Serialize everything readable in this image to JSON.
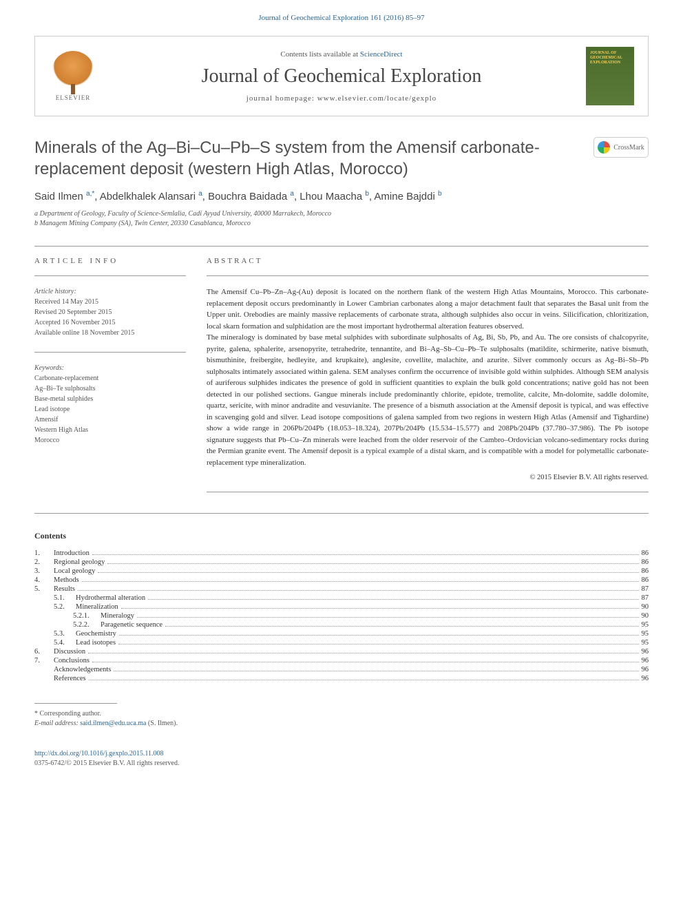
{
  "top_link": "Journal of Geochemical Exploration 161 (2016) 85–97",
  "header": {
    "contents_text": "Contents lists available at ",
    "contents_link": "ScienceDirect",
    "journal_name": "Journal of Geochemical Exploration",
    "homepage_label": "journal homepage: ",
    "homepage_url": "www.elsevier.com/locate/gexplo",
    "publisher_name": "ELSEVIER",
    "cover_text": "JOURNAL OF GEOCHEMICAL EXPLORATION"
  },
  "crossmark": "CrossMark",
  "title": "Minerals of the Ag–Bi–Cu–Pb–S system from the Amensif carbonate-replacement deposit (western High Atlas, Morocco)",
  "authors_html": "Said Ilmen <sup>a,*</sup>, Abdelkhalek Alansari <sup>a</sup>, Bouchra Baidada <sup>a</sup>, Lhou Maacha <sup>b</sup>, Amine Bajddi <sup>b</sup>",
  "affiliations": [
    "a Department of Geology, Faculty of Science-Semlalia, Cadi Ayyad University, 40000 Marrakech, Morocco",
    "b Managem Mining Company (SA), Twin Center, 20330 Casablanca, Morocco"
  ],
  "article_info_heading": "ARTICLE INFO",
  "abstract_heading": "ABSTRACT",
  "history": {
    "label": "Article history:",
    "received": "Received 14 May 2015",
    "revised": "Revised 20 September 2015",
    "accepted": "Accepted 16 November 2015",
    "online": "Available online 18 November 2015"
  },
  "keywords": {
    "label": "Keywords:",
    "items": [
      "Carbonate-replacement",
      "Ag–Bi–Te sulphosalts",
      "Base-metal sulphides",
      "Lead isotope",
      "Amensif",
      "Western High Atlas",
      "Morocco"
    ]
  },
  "abstract": {
    "p1": "The Amensif Cu–Pb–Zn–Ag-(Au) deposit is located on the northern flank of the western High Atlas Mountains, Morocco. This carbonate-replacement deposit occurs predominantly in Lower Cambrian carbonates along a major detachment fault that separates the Basal unit from the Upper unit. Orebodies are mainly massive replacements of carbonate strata, although sulphides also occur in veins. Silicification, chloritization, local skarn formation and sulphidation are the most important hydrothermal alteration features observed.",
    "p2": "The mineralogy is dominated by base metal sulphides with subordinate sulphosalts of Ag, Bi, Sb, Pb, and Au. The ore consists of chalcopyrite, pyrite, galena, sphalerite, arsenopyrite, tetrahedrite, tennantite, and Bi–Ag–Sb–Cu–Pb–Te sulphosalts (matildite, schirmerite, native bismuth, bismuthinite, freibergite, hedleyite, and krupkaite), anglesite, covellite, malachite, and azurite. Silver commonly occurs as Ag–Bi–Sb–Pb sulphosalts intimately associated within galena. SEM analyses confirm the occurrence of invisible gold within sulphides. Although SEM analysis of auriferous sulphides indicates the presence of gold in sufficient quantities to explain the bulk gold concentrations; native gold has not been detected in our polished sections. Gangue minerals include predominantly chlorite, epidote, tremolite, calcite, Mn-dolomite, saddle dolomite, quartz, sericite, with minor andradite and vesuvianite. The presence of a bismuth association at the Amensif deposit is typical, and was effective in scavenging gold and silver. Lead isotope compositions of galena sampled from two regions in western High Atlas (Amensif and Tighardine) show a wide range in 206Pb/204Pb (18.053–18.324), 207Pb/204Pb (15.534–15.577) and 208Pb/204Pb (37.780–37.986). The Pb isotope signature suggests that Pb–Cu–Zn minerals were leached from the older reservoir of the Cambro–Ordovician volcano-sedimentary rocks during the Permian granite event. The Amensif deposit is a typical example of a distal skarn, and is compatible with a model for polymetallic carbonate-replacement type mineralization."
  },
  "copyright": "© 2015 Elsevier B.V. All rights reserved.",
  "contents_heading": "Contents",
  "toc": [
    {
      "num": "1.",
      "label": "Introduction",
      "page": "86",
      "indent": 0
    },
    {
      "num": "2.",
      "label": "Regional geology",
      "page": "86",
      "indent": 0
    },
    {
      "num": "3.",
      "label": "Local geology",
      "page": "86",
      "indent": 0
    },
    {
      "num": "4.",
      "label": "Methods",
      "page": "86",
      "indent": 0
    },
    {
      "num": "5.",
      "label": "Results",
      "page": "87",
      "indent": 0
    },
    {
      "num": "5.1.",
      "label": "Hydrothermal alteration",
      "page": "87",
      "indent": 1
    },
    {
      "num": "5.2.",
      "label": "Mineralization",
      "page": "90",
      "indent": 1
    },
    {
      "num": "5.2.1.",
      "label": "Mineralogy",
      "page": "90",
      "indent": 2
    },
    {
      "num": "5.2.2.",
      "label": "Paragenetic sequence",
      "page": "95",
      "indent": 2
    },
    {
      "num": "5.3.",
      "label": "Geochemistry",
      "page": "95",
      "indent": 1
    },
    {
      "num": "5.4.",
      "label": "Lead isotopes",
      "page": "95",
      "indent": 1
    },
    {
      "num": "6.",
      "label": "Discussion",
      "page": "96",
      "indent": 0
    },
    {
      "num": "7.",
      "label": "Conclusions",
      "page": "96",
      "indent": 0
    },
    {
      "num": "",
      "label": "Acknowledgements",
      "page": "96",
      "indent": 0
    },
    {
      "num": "",
      "label": "References",
      "page": "96",
      "indent": 0
    }
  ],
  "corresponding": {
    "label": "* Corresponding author.",
    "email_label": "E-mail address: ",
    "email": "said.ilmen@edu.uca.ma",
    "email_suffix": " (S. Ilmen)."
  },
  "bottom": {
    "doi": "http://dx.doi.org/10.1016/j.gexplo.2015.11.008",
    "issn": "0375-6742/© 2015 Elsevier B.V. All rights reserved."
  }
}
